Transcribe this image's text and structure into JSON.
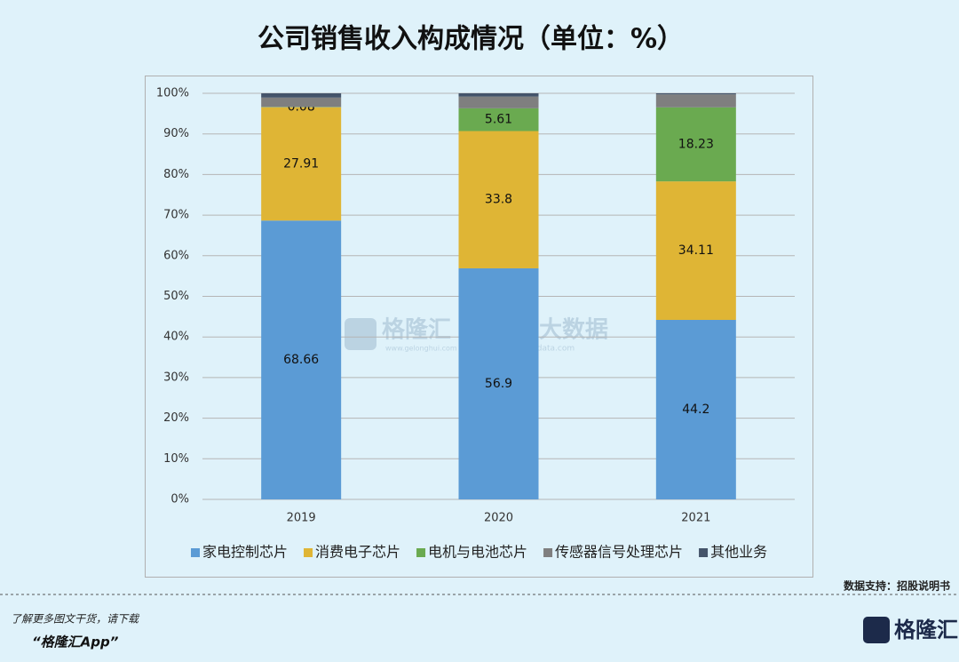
{
  "chart_data": {
    "type": "stacked_bar",
    "title": "公司销售收入构成情况（单位：%）",
    "categories": [
      "2019",
      "2020",
      "2021"
    ],
    "series": [
      {
        "name": "家电控制芯片",
        "color": "#5b9bd5",
        "values": [
          68.66,
          56.9,
          44.2
        ],
        "data_labels": true
      },
      {
        "name": "消费电子芯片",
        "color": "#dfb535",
        "values": [
          27.91,
          33.8,
          34.11
        ],
        "data_labels": true
      },
      {
        "name": "电机与电池芯片",
        "color": "#6aaa50",
        "values": [
          0.08,
          5.61,
          18.23
        ],
        "data_labels": true
      },
      {
        "name": "传感器信号处理芯片",
        "color": "#7f7f7f",
        "values": [
          2.3,
          2.9,
          3.2
        ],
        "data_labels": false
      },
      {
        "name": "其他业务",
        "color": "#44546a",
        "values": [
          1.05,
          0.79,
          0.26
        ],
        "data_labels": false
      }
    ],
    "ylim": [
      0,
      100
    ],
    "yticks": [
      {
        "value": 0,
        "label": "0%"
      },
      {
        "value": 10,
        "label": "10%"
      },
      {
        "value": 20,
        "label": "20%"
      },
      {
        "value": 30,
        "label": "30%"
      },
      {
        "value": 40,
        "label": "40%"
      },
      {
        "value": 50,
        "label": "50%"
      },
      {
        "value": 60,
        "label": "60%"
      },
      {
        "value": 70,
        "label": "70%"
      },
      {
        "value": 80,
        "label": "80%"
      },
      {
        "value": 90,
        "label": "90%"
      },
      {
        "value": 100,
        "label": "100%"
      }
    ],
    "grid": true,
    "legend": "bottom"
  },
  "source": "数据支持：招股说明书",
  "watermark": {
    "brand": "格隆汇",
    "brand_url": "www.gelonghui.com",
    "name": "勾股大数据",
    "url": "www.gogudata.com"
  },
  "footer": {
    "prompt": "了解更多图文干货，请下载",
    "app": "“格隆汇App”",
    "logo": "格隆汇"
  }
}
